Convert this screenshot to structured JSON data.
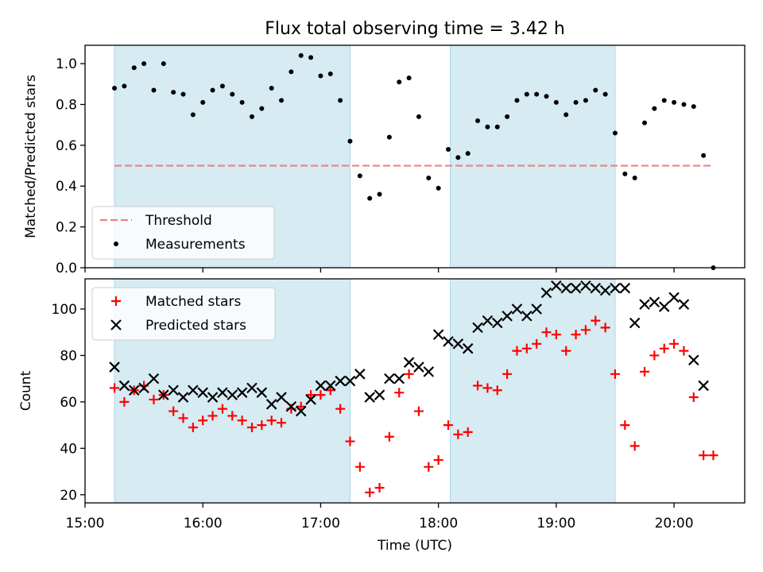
{
  "figure": {
    "title": "Flux total observing time = 3.42 h"
  },
  "chart_data": [
    {
      "type": "scatter",
      "panel": "top",
      "title": "Flux total observing time = 3.42 h",
      "xlabel": "",
      "ylabel": "Matched/Predicted stars",
      "xlim": [
        "15:00",
        "20:36"
      ],
      "ylim": [
        0,
        1.09
      ],
      "yticks": [
        0.0,
        0.2,
        0.4,
        0.6,
        0.8,
        1.0
      ],
      "ytick_labels": [
        "0.0",
        "0.2",
        "0.4",
        "0.6",
        "0.8",
        "1.0"
      ],
      "shaded_intervals": [
        [
          "15:15",
          "17:15"
        ],
        [
          "18:06",
          "19:30"
        ]
      ],
      "threshold": {
        "name": "Threshold",
        "y": 0.5,
        "x_range": [
          "15:15",
          "20:20"
        ],
        "color": "#f08080",
        "style": "dashed"
      },
      "legend": {
        "position": "lower-left",
        "entries": [
          "Threshold",
          "Measurements"
        ]
      },
      "series": [
        {
          "name": "Measurements",
          "color": "#000000",
          "marker": "dot",
          "x": [
            "15:15",
            "15:20",
            "15:25",
            "15:30",
            "15:35",
            "15:40",
            "15:45",
            "15:50",
            "15:55",
            "16:00",
            "16:05",
            "16:10",
            "16:15",
            "16:20",
            "16:25",
            "16:30",
            "16:35",
            "16:40",
            "16:45",
            "16:50",
            "16:55",
            "17:00",
            "17:05",
            "17:10",
            "17:15",
            "17:20",
            "17:25",
            "17:30",
            "17:35",
            "17:40",
            "17:45",
            "17:50",
            "17:55",
            "18:00",
            "18:05",
            "18:10",
            "18:15",
            "18:20",
            "18:25",
            "18:30",
            "18:35",
            "18:40",
            "18:45",
            "18:50",
            "18:55",
            "19:00",
            "19:05",
            "19:10",
            "19:15",
            "19:20",
            "19:25",
            "19:30",
            "19:35",
            "19:40",
            "19:45",
            "19:50",
            "19:55",
            "20:00",
            "20:05",
            "20:10",
            "20:15",
            "20:20"
          ],
          "y": [
            0.88,
            0.89,
            0.98,
            1.0,
            0.87,
            1.0,
            0.86,
            0.85,
            0.75,
            0.81,
            0.87,
            0.89,
            0.85,
            0.81,
            0.74,
            0.78,
            0.88,
            0.82,
            0.96,
            1.04,
            1.03,
            0.94,
            0.95,
            0.82,
            0.62,
            0.45,
            0.34,
            0.36,
            0.64,
            0.91,
            0.93,
            0.74,
            0.44,
            0.39,
            0.58,
            0.54,
            0.56,
            0.72,
            0.69,
            0.69,
            0.74,
            0.82,
            0.85,
            0.85,
            0.84,
            0.81,
            0.75,
            0.81,
            0.82,
            0.87,
            0.85,
            0.66,
            0.46,
            0.44,
            0.71,
            0.78,
            0.82,
            0.81,
            0.8,
            0.79,
            0.55,
            0.0
          ]
        }
      ]
    },
    {
      "type": "scatter",
      "panel": "bottom",
      "xlabel": "Time (UTC)",
      "ylabel": "Count",
      "xlim": [
        "15:00",
        "20:36"
      ],
      "xticks": [
        "15:00",
        "16:00",
        "17:00",
        "18:00",
        "19:00",
        "20:00"
      ],
      "ylim": [
        16.5,
        113
      ],
      "yticks": [
        20,
        40,
        60,
        80,
        100
      ],
      "ytick_labels": [
        "20",
        "40",
        "60",
        "80",
        "100"
      ],
      "shaded_intervals": [
        [
          "15:15",
          "17:15"
        ],
        [
          "18:06",
          "19:30"
        ]
      ],
      "legend": {
        "position": "top-left",
        "entries": [
          "Matched stars",
          "Predicted stars"
        ]
      },
      "series": [
        {
          "name": "Matched stars",
          "color": "#ff0000",
          "marker": "plus",
          "x": [
            "15:15",
            "15:20",
            "15:25",
            "15:30",
            "15:35",
            "15:40",
            "15:45",
            "15:50",
            "15:55",
            "16:00",
            "16:05",
            "16:10",
            "16:15",
            "16:20",
            "16:25",
            "16:30",
            "16:35",
            "16:40",
            "16:45",
            "16:50",
            "16:55",
            "17:00",
            "17:05",
            "17:10",
            "17:15",
            "17:20",
            "17:25",
            "17:30",
            "17:35",
            "17:40",
            "17:45",
            "17:50",
            "17:55",
            "18:00",
            "18:05",
            "18:10",
            "18:15",
            "18:20",
            "18:25",
            "18:30",
            "18:35",
            "18:40",
            "18:45",
            "18:50",
            "18:55",
            "19:00",
            "19:05",
            "19:10",
            "19:15",
            "19:20",
            "19:25",
            "19:30",
            "19:35",
            "19:40",
            "19:45",
            "19:50",
            "19:55",
            "20:00",
            "20:05",
            "20:10",
            "20:15",
            "20:20"
          ],
          "y": [
            66,
            60,
            65,
            67,
            61,
            63,
            56,
            53,
            49,
            52,
            54,
            57,
            54,
            52,
            49,
            50,
            52,
            51,
            57,
            58,
            63,
            63,
            65,
            57,
            43,
            32,
            21,
            23,
            45,
            64,
            72,
            56,
            32,
            35,
            50,
            46,
            47,
            67,
            66,
            65,
            72,
            82,
            83,
            85,
            90,
            89,
            82,
            89,
            91,
            95,
            92,
            72,
            50,
            41,
            73,
            80,
            83,
            85,
            82,
            62,
            37,
            37
          ]
        },
        {
          "name": "Predicted stars",
          "color": "#000000",
          "marker": "x",
          "x": [
            "15:15",
            "15:20",
            "15:25",
            "15:30",
            "15:35",
            "15:40",
            "15:45",
            "15:50",
            "15:55",
            "16:00",
            "16:05",
            "16:10",
            "16:15",
            "16:20",
            "16:25",
            "16:30",
            "16:35",
            "16:40",
            "16:45",
            "16:50",
            "16:55",
            "17:00",
            "17:05",
            "17:10",
            "17:15",
            "17:20",
            "17:25",
            "17:30",
            "17:35",
            "17:40",
            "17:45",
            "17:50",
            "17:55",
            "18:00",
            "18:05",
            "18:10",
            "18:15",
            "18:20",
            "18:25",
            "18:30",
            "18:35",
            "18:40",
            "18:45",
            "18:50",
            "18:55",
            "19:00",
            "19:05",
            "19:10",
            "19:15",
            "19:20",
            "19:25",
            "19:30",
            "19:35",
            "19:40",
            "19:45",
            "19:50",
            "19:55",
            "20:00",
            "20:05",
            "20:10",
            "20:15"
          ],
          "y": [
            75,
            67,
            65,
            66,
            70,
            63,
            65,
            62,
            65,
            64,
            62,
            64,
            63,
            64,
            66,
            64,
            59,
            62,
            58,
            56,
            61,
            67,
            67,
            69,
            69,
            72,
            62,
            63,
            70,
            70,
            77,
            75,
            73,
            89,
            86,
            85,
            83,
            92,
            95,
            94,
            97,
            100,
            97,
            100,
            107,
            110,
            109,
            109,
            110,
            109,
            108,
            109,
            109,
            94,
            102,
            103,
            101,
            105,
            102,
            78,
            67
          ]
        }
      ]
    }
  ]
}
